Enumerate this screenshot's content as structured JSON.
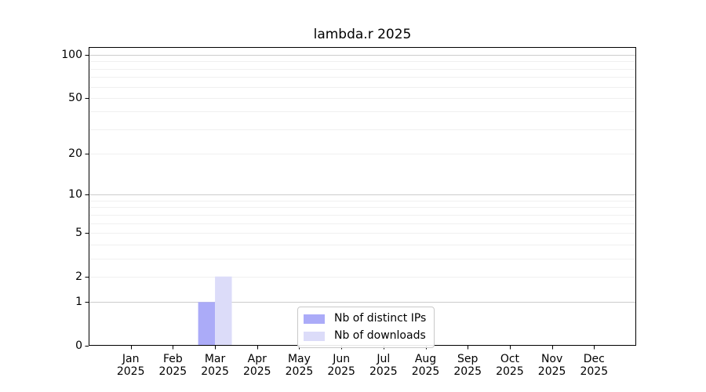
{
  "chart_data": {
    "type": "bar",
    "title": "lambda.r 2025",
    "categories": [
      "Jan",
      "Feb",
      "Mar",
      "Apr",
      "May",
      "Jun",
      "Jul",
      "Aug",
      "Sep",
      "Oct",
      "Nov",
      "Dec"
    ],
    "year_label": "2025",
    "series": [
      {
        "name": "Nb of distinct IPs",
        "color": "#ababf8",
        "values": [
          0,
          0,
          1,
          0,
          0,
          0,
          0,
          0,
          0,
          0,
          0,
          0
        ]
      },
      {
        "name": "Nb of downloads",
        "color": "#dcdcf9",
        "values": [
          0,
          0,
          2,
          0,
          0,
          0,
          0,
          0,
          0,
          0,
          0,
          0
        ]
      }
    ],
    "y_axis": {
      "scale": "log1p",
      "ticks": [
        0,
        1,
        2,
        5,
        10,
        20,
        50,
        100
      ],
      "min": 0,
      "max": 100
    },
    "grid": {
      "major_lines": [
        1,
        10,
        100
      ],
      "minor_lines": [
        2,
        3,
        4,
        5,
        6,
        7,
        8,
        9,
        20,
        30,
        40,
        50,
        60,
        70,
        80,
        90
      ],
      "major_color": "#cccccc",
      "minor_color": "#f0f0f0"
    },
    "axis_color": "#000000",
    "legend": {
      "position": "lower center"
    }
  }
}
